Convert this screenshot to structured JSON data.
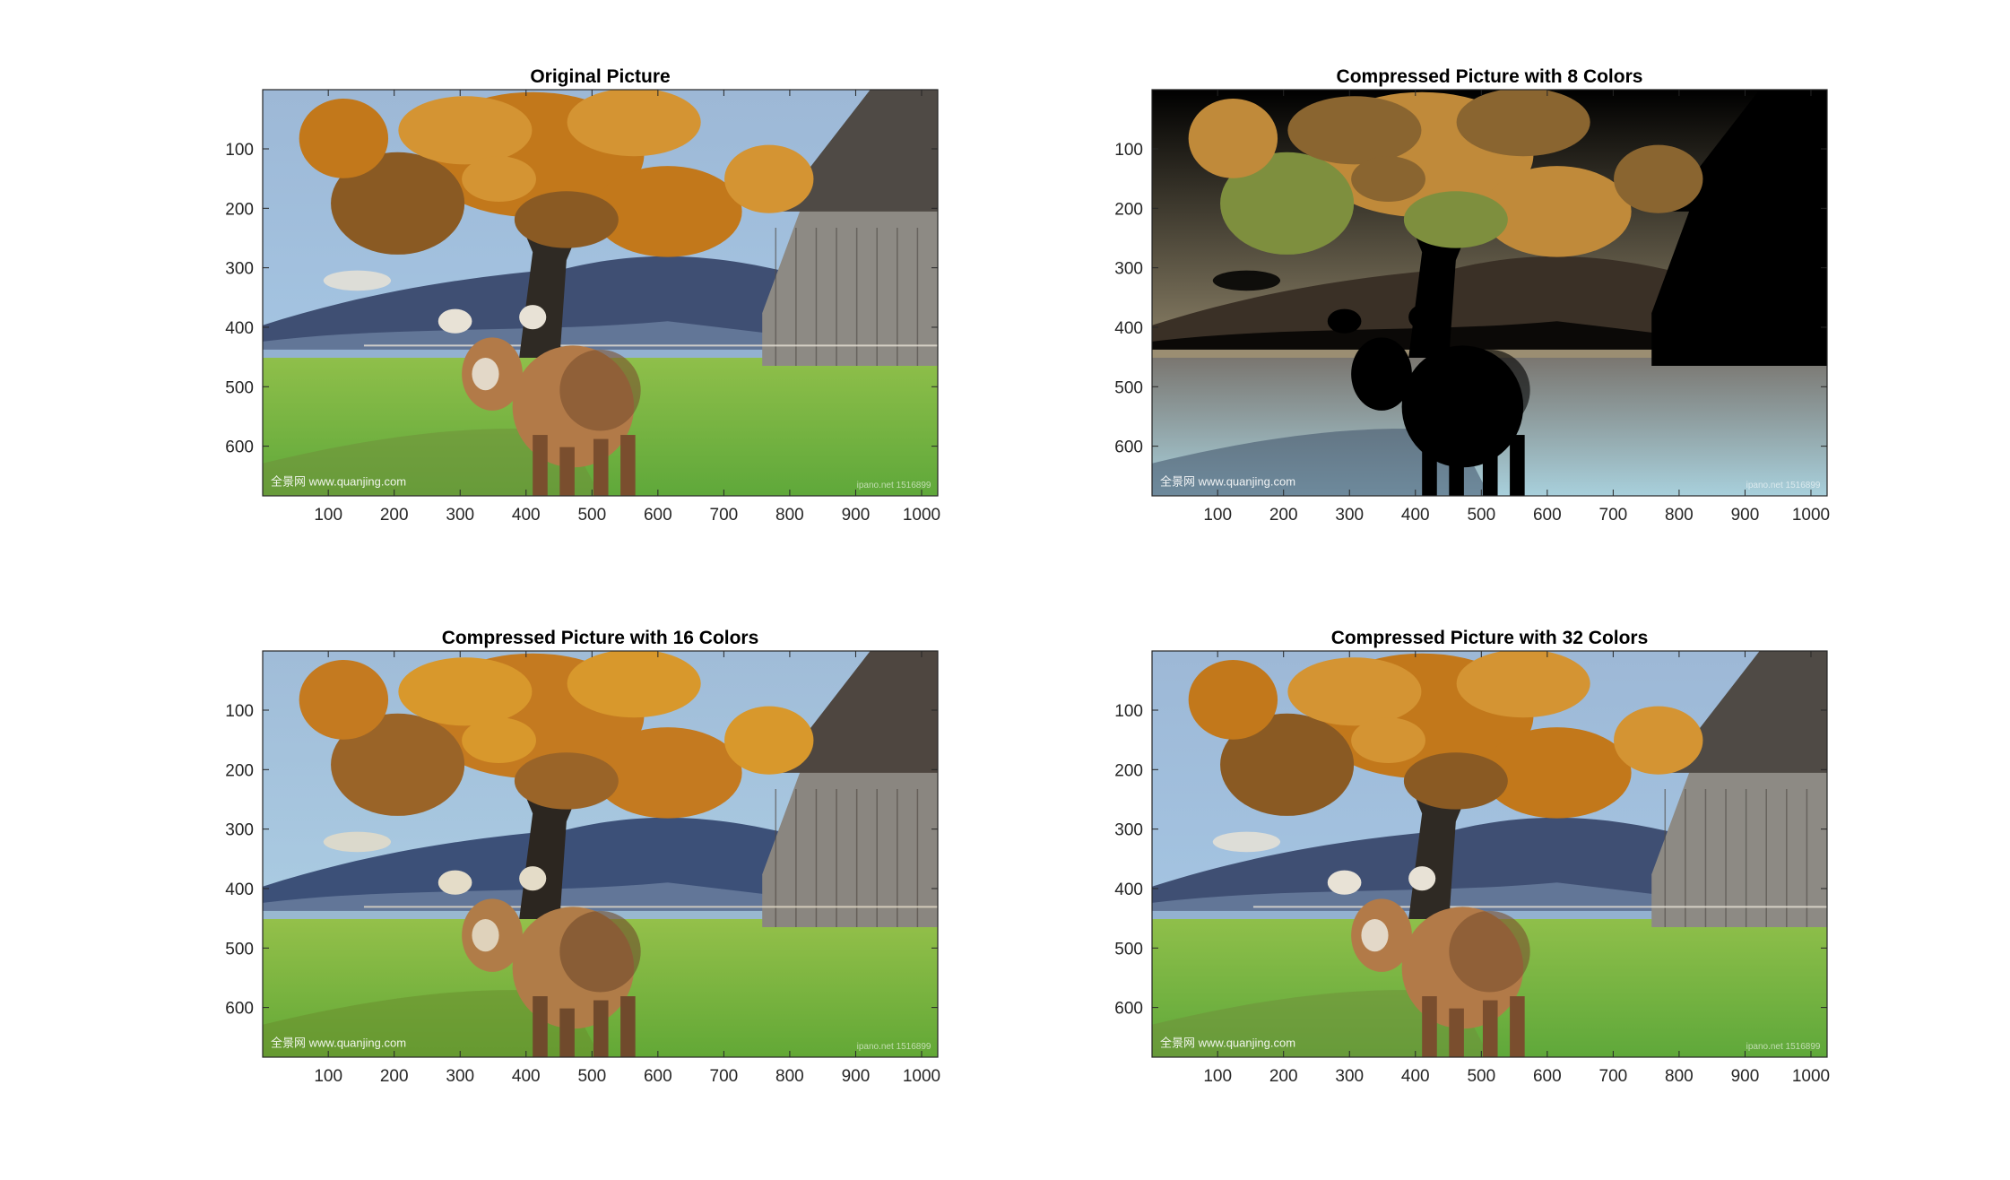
{
  "figure": {
    "subplots": [
      {
        "title": "Original Picture",
        "colors": null,
        "palette": [
          "#c2781b",
          "#d49433",
          "#8a5a23",
          "#6f8f3a",
          "#5fa83a",
          "#8fbf4a",
          "#3f4f73",
          "#a8cbe8",
          "#8d8a84",
          "#4f4a45",
          "#b27a48",
          "#7a4e2e",
          "#e8e2d6",
          "#2f2a24",
          "#6b7fa0",
          "#9db8d6"
        ]
      },
      {
        "title": "Compressed Picture with 8 Colors",
        "colors": 8,
        "palette": [
          "#c08a3a",
          "#8a6530",
          "#7e8f3e",
          "#3e5068",
          "#a8d0dc",
          "#7a7670",
          "#3a3026",
          "#d8c8a0"
        ]
      },
      {
        "title": "Compressed Picture with 16 Colors",
        "colors": 16,
        "palette": [
          "#c47a20",
          "#d8982c",
          "#9a6428",
          "#6a8e2e",
          "#62a836",
          "#94c04a",
          "#3c5078",
          "#b0d4e8",
          "#8a8680",
          "#4e4640",
          "#b07c48",
          "#704a2c",
          "#e4dcc8",
          "#2c2620",
          "#6c80a0",
          "#a0bcd8"
        ]
      },
      {
        "title": "Compressed Picture with 32 Colors",
        "colors": 32,
        "palette": [
          "#c2781b",
          "#d49433",
          "#8a5a23",
          "#6f8f3a",
          "#5fa83a",
          "#8fbf4a",
          "#3f4f73",
          "#a8cbe8",
          "#8d8a84",
          "#4f4a45",
          "#b27a48",
          "#7a4e2e",
          "#e8e2d6",
          "#2f2a24",
          "#6b7fa0",
          "#9db8d6"
        ]
      }
    ],
    "watermark_left": "全景网 www.quanjing.com",
    "watermark_right": "ipano.net 1516899"
  },
  "chart_data": [
    {
      "type": "image",
      "title": "Original Picture",
      "xticks": [
        100,
        200,
        300,
        400,
        500,
        600,
        700,
        800,
        900,
        1000
      ],
      "yticks": [
        100,
        200,
        300,
        400,
        500,
        600
      ],
      "xlim": [
        0.5,
        1024.5
      ],
      "ylim": [
        0.5,
        683.5
      ],
      "y_direction": "reverse"
    },
    {
      "type": "image",
      "title": "Compressed Picture with 8 Colors",
      "xticks": [
        100,
        200,
        300,
        400,
        500,
        600,
        700,
        800,
        900,
        1000
      ],
      "yticks": [
        100,
        200,
        300,
        400,
        500,
        600
      ],
      "xlim": [
        0.5,
        1024.5
      ],
      "ylim": [
        0.5,
        683.5
      ],
      "y_direction": "reverse"
    },
    {
      "type": "image",
      "title": "Compressed Picture with 16 Colors",
      "xticks": [
        100,
        200,
        300,
        400,
        500,
        600,
        700,
        800,
        900,
        1000
      ],
      "yticks": [
        100,
        200,
        300,
        400,
        500,
        600
      ],
      "xlim": [
        0.5,
        1024.5
      ],
      "ylim": [
        0.5,
        683.5
      ],
      "y_direction": "reverse"
    },
    {
      "type": "image",
      "title": "Compressed Picture with 32 Colors",
      "xticks": [
        100,
        200,
        300,
        400,
        500,
        600,
        700,
        800,
        900,
        1000
      ],
      "yticks": [
        100,
        200,
        300,
        400,
        500,
        600
      ],
      "xlim": [
        0.5,
        1024.5
      ],
      "ylim": [
        0.5,
        683.5
      ],
      "y_direction": "reverse"
    }
  ]
}
